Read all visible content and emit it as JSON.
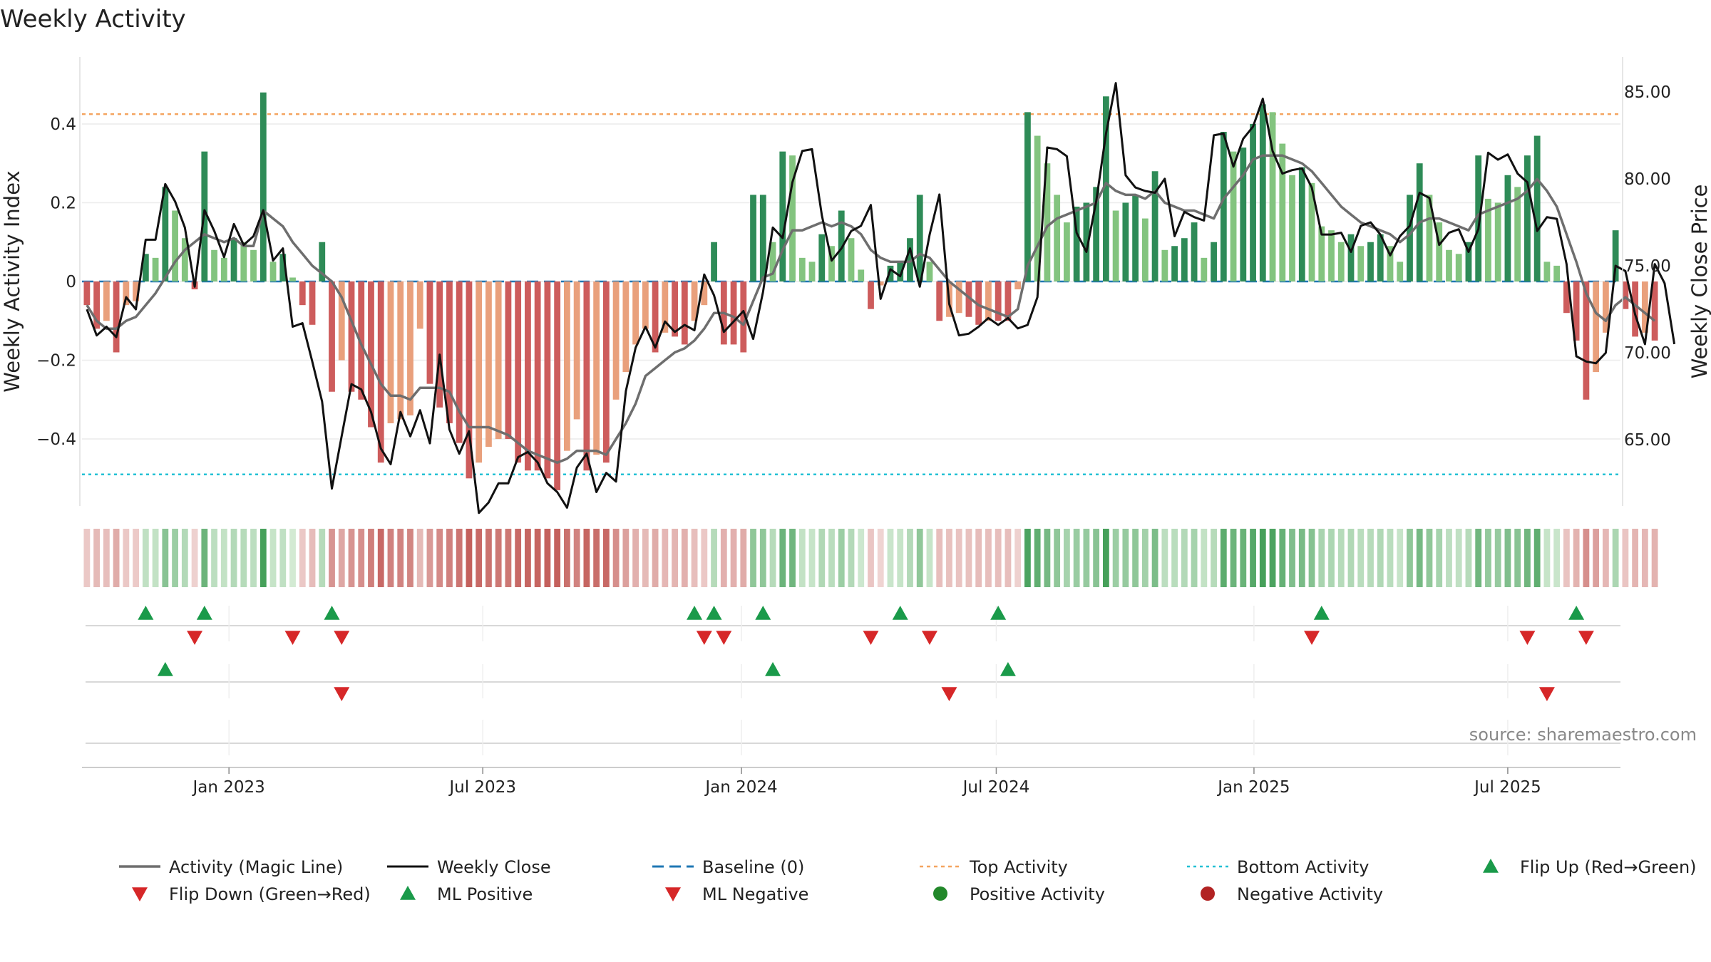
{
  "chart_data": {
    "type": "bar",
    "title": "Weekly Activity",
    "ylabel_left": "Weekly Activity Index",
    "ylabel_right": "Weekly Close Price",
    "source": "source: sharemaestro.com",
    "left_axis": {
      "range": [
        -0.57,
        0.57
      ],
      "ticks": [
        {
          "v": 0.4,
          "label": "0.4"
        },
        {
          "v": 0.2,
          "label": "0.2"
        },
        {
          "v": 0,
          "label": "0"
        },
        {
          "v": -0.2,
          "label": "−0.2"
        },
        {
          "v": -0.4,
          "label": "−0.4"
        }
      ]
    },
    "right_axis": {
      "range": [
        61.2,
        87.0
      ],
      "ticks": [
        {
          "v": 85,
          "label": "85.00"
        },
        {
          "v": 80,
          "label": "80.00"
        },
        {
          "v": 75,
          "label": "75.00"
        },
        {
          "v": 70,
          "label": "70.00"
        },
        {
          "v": 65,
          "label": "65.00"
        }
      ]
    },
    "x_range": [
      0,
      157
    ],
    "x_ticks": [
      {
        "week": 14.5,
        "label": "Jan 2023"
      },
      {
        "week": 40.4,
        "label": "Jul 2023"
      },
      {
        "week": 66.8,
        "label": "Jan 2024"
      },
      {
        "week": 92.8,
        "label": "Jul 2024"
      },
      {
        "week": 119.1,
        "label": "Jan 2025"
      },
      {
        "week": 145,
        "label": "Jul 2025"
      }
    ],
    "top_activity": 0.425,
    "bottom_activity": -0.49,
    "baseline": 0,
    "activity": [
      -0.06,
      -0.12,
      -0.1,
      -0.18,
      -0.06,
      -0.05,
      0.07,
      0.06,
      0.24,
      0.18,
      0.11,
      -0.02,
      0.33,
      0.08,
      0.06,
      0.11,
      0.1,
      0.08,
      0.48,
      0.05,
      0.07,
      0.01,
      -0.06,
      -0.11,
      0.1,
      -0.28,
      -0.2,
      -0.28,
      -0.3,
      -0.37,
      -0.46,
      -0.36,
      -0.35,
      -0.34,
      -0.12,
      -0.26,
      -0.32,
      -0.36,
      -0.41,
      -0.5,
      -0.46,
      -0.42,
      -0.4,
      -0.4,
      -0.46,
      -0.48,
      -0.48,
      -0.5,
      -0.53,
      -0.43,
      -0.35,
      -0.48,
      -0.44,
      -0.46,
      -0.3,
      -0.23,
      -0.16,
      -0.12,
      -0.18,
      -0.13,
      -0.14,
      -0.16,
      -0.1,
      -0.06,
      0.1,
      -0.16,
      -0.16,
      -0.18,
      0.22,
      0.22,
      0.1,
      0.33,
      0.32,
      0.06,
      0.05,
      0.12,
      0.09,
      0.18,
      0.11,
      0.03,
      -0.07,
      -0.01,
      0.04,
      0.05,
      0.11,
      0.22,
      0.05,
      -0.1,
      -0.09,
      -0.08,
      -0.09,
      -0.11,
      -0.1,
      -0.1,
      -0.1,
      -0.02,
      0.43,
      0.37,
      0.3,
      0.22,
      0.15,
      0.19,
      0.2,
      0.24,
      0.47,
      0.18,
      0.2,
      0.22,
      0.16,
      0.28,
      0.08,
      0.09,
      0.11,
      0.15,
      0.06,
      0.1,
      0.38,
      0.33,
      0.34,
      0.4,
      0.45,
      0.43,
      0.35,
      0.27,
      0.29,
      0.25,
      0.14,
      0.13,
      0.1,
      0.12,
      0.09,
      0.1,
      0.12,
      0.09,
      0.05,
      0.22,
      0.3,
      0.22,
      0.15,
      0.08,
      0.07,
      0.1,
      0.32,
      0.21,
      0.2,
      0.27,
      0.24,
      0.32,
      0.37,
      0.05,
      0.04,
      -0.08,
      -0.15,
      -0.3,
      -0.23,
      -0.13,
      0.13,
      -0.07,
      -0.14,
      -0.13,
      -0.15
    ],
    "magic_line": [
      -0.06,
      -0.1,
      -0.12,
      -0.12,
      -0.1,
      -0.09,
      -0.06,
      -0.03,
      0.01,
      0.05,
      0.08,
      0.1,
      0.12,
      0.11,
      0.1,
      0.11,
      0.09,
      0.09,
      0.18,
      0.16,
      0.14,
      0.1,
      0.07,
      0.04,
      0.02,
      0.0,
      -0.04,
      -0.1,
      -0.16,
      -0.21,
      -0.26,
      -0.29,
      -0.29,
      -0.3,
      -0.27,
      -0.27,
      -0.27,
      -0.28,
      -0.33,
      -0.37,
      -0.37,
      -0.37,
      -0.38,
      -0.39,
      -0.41,
      -0.43,
      -0.44,
      -0.45,
      -0.46,
      -0.45,
      -0.43,
      -0.43,
      -0.43,
      -0.44,
      -0.4,
      -0.36,
      -0.31,
      -0.24,
      -0.22,
      -0.2,
      -0.18,
      -0.17,
      -0.15,
      -0.12,
      -0.08,
      -0.08,
      -0.09,
      -0.11,
      -0.05,
      0.01,
      0.02,
      0.08,
      0.13,
      0.13,
      0.14,
      0.15,
      0.14,
      0.15,
      0.14,
      0.12,
      0.08,
      0.06,
      0.05,
      0.05,
      0.05,
      0.07,
      0.06,
      0.03,
      0.0,
      -0.02,
      -0.04,
      -0.06,
      -0.07,
      -0.08,
      -0.09,
      -0.07,
      0.04,
      0.09,
      0.14,
      0.16,
      0.17,
      0.18,
      0.19,
      0.2,
      0.25,
      0.23,
      0.22,
      0.22,
      0.21,
      0.23,
      0.2,
      0.19,
      0.18,
      0.18,
      0.17,
      0.16,
      0.21,
      0.24,
      0.27,
      0.31,
      0.32,
      0.32,
      0.32,
      0.31,
      0.3,
      0.28,
      0.25,
      0.22,
      0.19,
      0.17,
      0.15,
      0.14,
      0.13,
      0.12,
      0.1,
      0.12,
      0.15,
      0.16,
      0.16,
      0.15,
      0.14,
      0.13,
      0.17,
      0.18,
      0.19,
      0.2,
      0.21,
      0.23,
      0.26,
      0.23,
      0.19,
      0.12,
      0.05,
      -0.03,
      -0.08,
      -0.1,
      -0.06,
      -0.04,
      -0.06,
      -0.08,
      -0.1
    ],
    "weekly_close": [
      72.5,
      71.0,
      71.5,
      70.9,
      73.2,
      72.5,
      76.5,
      76.5,
      79.7,
      78.7,
      77.2,
      73.8,
      78.2,
      77.0,
      75.5,
      77.4,
      76.2,
      76.7,
      78.2,
      75.3,
      76.0,
      71.5,
      71.7,
      69.5,
      67.2,
      62.2,
      65.2,
      68.2,
      67.9,
      66.6,
      64.5,
      63.6,
      66.6,
      65.2,
      66.7,
      64.8,
      69.9,
      65.6,
      64.2,
      65.5,
      60.8,
      61.4,
      62.5,
      62.5,
      64.0,
      64.3,
      63.7,
      62.5,
      62.0,
      61.1,
      63.4,
      64.2,
      62.0,
      63.1,
      62.6,
      67.8,
      70.3,
      71.5,
      70.3,
      71.8,
      71.2,
      71.6,
      71.3,
      74.5,
      73.3,
      71.2,
      71.8,
      72.4,
      70.8,
      73.5,
      77.2,
      76.6,
      79.8,
      81.6,
      81.7,
      77.9,
      75.3,
      76.0,
      77.0,
      77.3,
      78.5,
      73.1,
      74.8,
      74.4,
      76.0,
      73.8,
      76.8,
      79.1,
      72.8,
      71.0,
      71.1,
      71.5,
      72.0,
      71.6,
      72.0,
      71.4,
      71.6,
      73.2,
      81.8,
      81.7,
      81.3,
      76.9,
      75.8,
      78.7,
      82.6,
      85.5,
      80.2,
      79.5,
      79.3,
      79.2,
      80.0,
      76.7,
      78.1,
      77.8,
      77.6,
      82.5,
      82.6,
      80.7,
      82.3,
      83.0,
      84.6,
      81.6,
      80.3,
      80.5,
      80.6,
      79.5,
      76.8,
      76.8,
      76.9,
      75.8,
      77.3,
      77.5,
      76.8,
      75.6,
      76.7,
      77.3,
      79.2,
      78.9,
      76.2,
      76.9,
      77.1,
      75.8,
      77.1,
      81.5,
      81.1,
      81.4,
      80.3,
      79.8,
      77.0,
      77.8,
      77.7,
      75.1,
      69.8,
      69.5,
      69.4,
      70.0,
      75.0,
      74.7,
      72.2,
      70.5,
      75.1,
      74.0,
      70.5
    ],
    "flip_up_weeks": [
      6,
      12,
      25,
      62,
      64,
      69,
      83,
      93,
      126,
      152
    ],
    "flip_down_weeks": [
      11,
      21,
      26,
      63,
      65,
      80,
      86,
      125,
      147,
      153
    ],
    "ml_positive_weeks": [
      8,
      70,
      94
    ],
    "ml_negative_weeks": [
      26,
      88,
      149
    ],
    "legend": [
      {
        "key": "magic",
        "label": "Activity (Magic Line)"
      },
      {
        "key": "close",
        "label": "Weekly Close"
      },
      {
        "key": "baseline",
        "label": "Baseline (0)"
      },
      {
        "key": "top",
        "label": "Top Activity"
      },
      {
        "key": "bottom",
        "label": "Bottom Activity"
      },
      {
        "key": "flipup",
        "label": "Flip Up (Red→Green)"
      },
      {
        "key": "flipdown",
        "label": "Flip Down (Green→Red)"
      },
      {
        "key": "mlpos",
        "label": "ML Positive"
      },
      {
        "key": "mlneg",
        "label": "ML Negative"
      },
      {
        "key": "posact",
        "label": "Positive Activity"
      },
      {
        "key": "negact",
        "label": "Negative Activity"
      }
    ],
    "colors": {
      "pos_dark": "#2e8b57",
      "pos_light": "#83c47f",
      "neg_dark": "#cd5c5c",
      "neg_light": "#e9a07c",
      "magic": "#6e6e6e",
      "close": "#111111",
      "baseline": "#1f77b4",
      "top": "#f4a460",
      "bottom": "#22c0d4",
      "flip_up": "#1a9a4a",
      "flip_down": "#d62728",
      "pos_dot": "#22882a",
      "neg_dot": "#b22222"
    }
  }
}
